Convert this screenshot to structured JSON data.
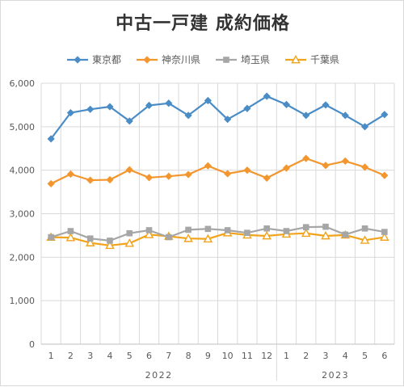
{
  "chart_data": {
    "type": "line",
    "title": "中古一戸建 成約価格",
    "xlabel": "",
    "ylabel": "",
    "ylim": [
      0,
      6000
    ],
    "yticks": [
      "0",
      "1,000",
      "2,000",
      "3,000",
      "4,000",
      "5,000",
      "6,000"
    ],
    "categories": [
      "1",
      "2",
      "3",
      "4",
      "5",
      "6",
      "7",
      "8",
      "9",
      "10",
      "11",
      "12",
      "1",
      "2",
      "3",
      "4",
      "5",
      "6"
    ],
    "year_groups": [
      {
        "label": "2022",
        "count": 12
      },
      {
        "label": "2023",
        "count": 6
      }
    ],
    "grid": true,
    "legend_position": "top",
    "series": [
      {
        "name": "東京都",
        "color": "#4a8cc6",
        "marker": "diamond",
        "values": [
          4720,
          5320,
          5400,
          5460,
          5130,
          5490,
          5540,
          5260,
          5600,
          5170,
          5420,
          5700,
          5510,
          5260,
          5500,
          5260,
          5000,
          5280
        ]
      },
      {
        "name": "神奈川県",
        "color": "#f2962d",
        "marker": "diamond",
        "values": [
          3690,
          3910,
          3770,
          3780,
          4010,
          3830,
          3860,
          3900,
          4100,
          3920,
          4000,
          3820,
          4050,
          4270,
          4110,
          4210,
          4070,
          3880
        ]
      },
      {
        "name": "埼玉県",
        "color": "#a6a6a6",
        "marker": "square",
        "values": [
          2460,
          2600,
          2430,
          2380,
          2550,
          2620,
          2460,
          2630,
          2650,
          2620,
          2560,
          2660,
          2600,
          2690,
          2700,
          2520,
          2660,
          2580
        ]
      },
      {
        "name": "千葉県",
        "color": "#f2a31c",
        "marker": "triangle",
        "values": [
          2460,
          2450,
          2330,
          2270,
          2320,
          2520,
          2480,
          2430,
          2420,
          2560,
          2510,
          2490,
          2530,
          2550,
          2490,
          2510,
          2390,
          2460
        ]
      }
    ]
  }
}
